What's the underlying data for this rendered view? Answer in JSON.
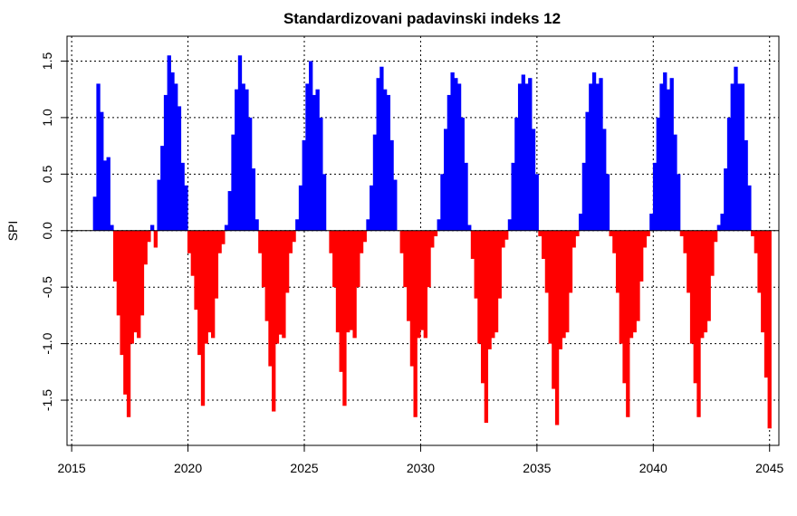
{
  "chart_data": {
    "type": "area",
    "title": "Standardizovani padavinski indeks 12",
    "xlabel": "",
    "ylabel": "SPI",
    "xlim": [
      2014.8,
      2045.4
    ],
    "ylim": [
      -1.9,
      1.72
    ],
    "x_ticks": [
      2015,
      2020,
      2025,
      2030,
      2035,
      2040,
      2045
    ],
    "y_ticks": [
      -1.5,
      -1.0,
      -0.5,
      0.0,
      0.5,
      1.0,
      1.5
    ],
    "y_tick_labels": [
      "-1.5",
      "-1.0",
      "-0.5",
      "0.0",
      "0.5",
      "1.0",
      "1.5"
    ],
    "grid": true,
    "positive_color": "#0000ff",
    "negative_color": "#ff0000",
    "x_start": 2016.0,
    "x_end": 2045.0,
    "step_years": 0.0833,
    "series": [
      {
        "values": [
          0.3,
          1.3,
          1.05,
          0.62,
          0.65,
          0.05,
          -0.45,
          -0.75,
          -1.1,
          -1.45,
          -1.65,
          -1.0,
          -0.9,
          -0.95,
          -0.75,
          -0.3,
          -0.1,
          0.05,
          -0.15,
          0.45,
          0.75,
          1.2,
          1.55,
          1.4,
          1.3,
          1.1,
          0.6,
          0.4,
          -0.2,
          -0.4,
          -0.7,
          -1.1,
          -1.55,
          -1.0,
          -0.9,
          -0.95,
          -0.6,
          -0.2,
          -0.12,
          0.05,
          0.35,
          0.85,
          1.25,
          1.55,
          1.3,
          1.25,
          1.0,
          0.55,
          0.1,
          -0.2,
          -0.5,
          -0.8,
          -1.2,
          -1.6,
          -1.0,
          -0.92,
          -0.95,
          -0.55,
          -0.2,
          -0.1,
          0.1,
          0.4,
          0.8,
          1.3,
          1.5,
          1.2,
          1.25,
          1.0,
          0.5,
          0.0,
          -0.2,
          -0.5,
          -0.9,
          -1.25,
          -1.55,
          -0.9,
          -0.88,
          -0.95,
          -0.5,
          -0.2,
          -0.1,
          0.1,
          0.4,
          0.85,
          1.35,
          1.45,
          1.25,
          1.2,
          0.8,
          0.45,
          0.0,
          -0.2,
          -0.5,
          -0.8,
          -1.2,
          -1.65,
          -0.95,
          -0.88,
          -0.95,
          -0.5,
          -0.15,
          -0.05,
          0.1,
          0.5,
          0.9,
          1.2,
          1.4,
          1.35,
          1.3,
          1.0,
          0.6,
          0.05,
          -0.25,
          -0.6,
          -1.0,
          -1.35,
          -1.7,
          -1.05,
          -0.95,
          -0.9,
          -0.6,
          -0.15,
          -0.08,
          0.1,
          0.6,
          1.0,
          1.3,
          1.38,
          1.3,
          1.35,
          0.9,
          0.5,
          -0.05,
          -0.25,
          -0.55,
          -1.0,
          -1.4,
          -1.72,
          -1.05,
          -0.95,
          -0.9,
          -0.55,
          -0.15,
          -0.05,
          0.15,
          0.6,
          1.05,
          1.3,
          1.4,
          1.3,
          1.35,
          0.9,
          0.5,
          -0.05,
          -0.2,
          -0.55,
          -1.0,
          -1.35,
          -1.65,
          -0.95,
          -0.9,
          -0.8,
          -0.45,
          -0.15,
          -0.05,
          0.15,
          0.6,
          1.0,
          1.3,
          1.4,
          1.25,
          1.35,
          0.85,
          0.5,
          -0.05,
          -0.2,
          -0.55,
          -1.0,
          -1.35,
          -1.65,
          -0.95,
          -0.9,
          -0.8,
          -0.4,
          -0.1,
          0.05,
          0.15,
          0.55,
          1.0,
          1.3,
          1.45,
          1.3,
          1.3,
          0.8,
          0.4,
          -0.05,
          -0.2,
          -0.55,
          -0.9,
          -1.3,
          -1.75
        ]
      }
    ]
  }
}
